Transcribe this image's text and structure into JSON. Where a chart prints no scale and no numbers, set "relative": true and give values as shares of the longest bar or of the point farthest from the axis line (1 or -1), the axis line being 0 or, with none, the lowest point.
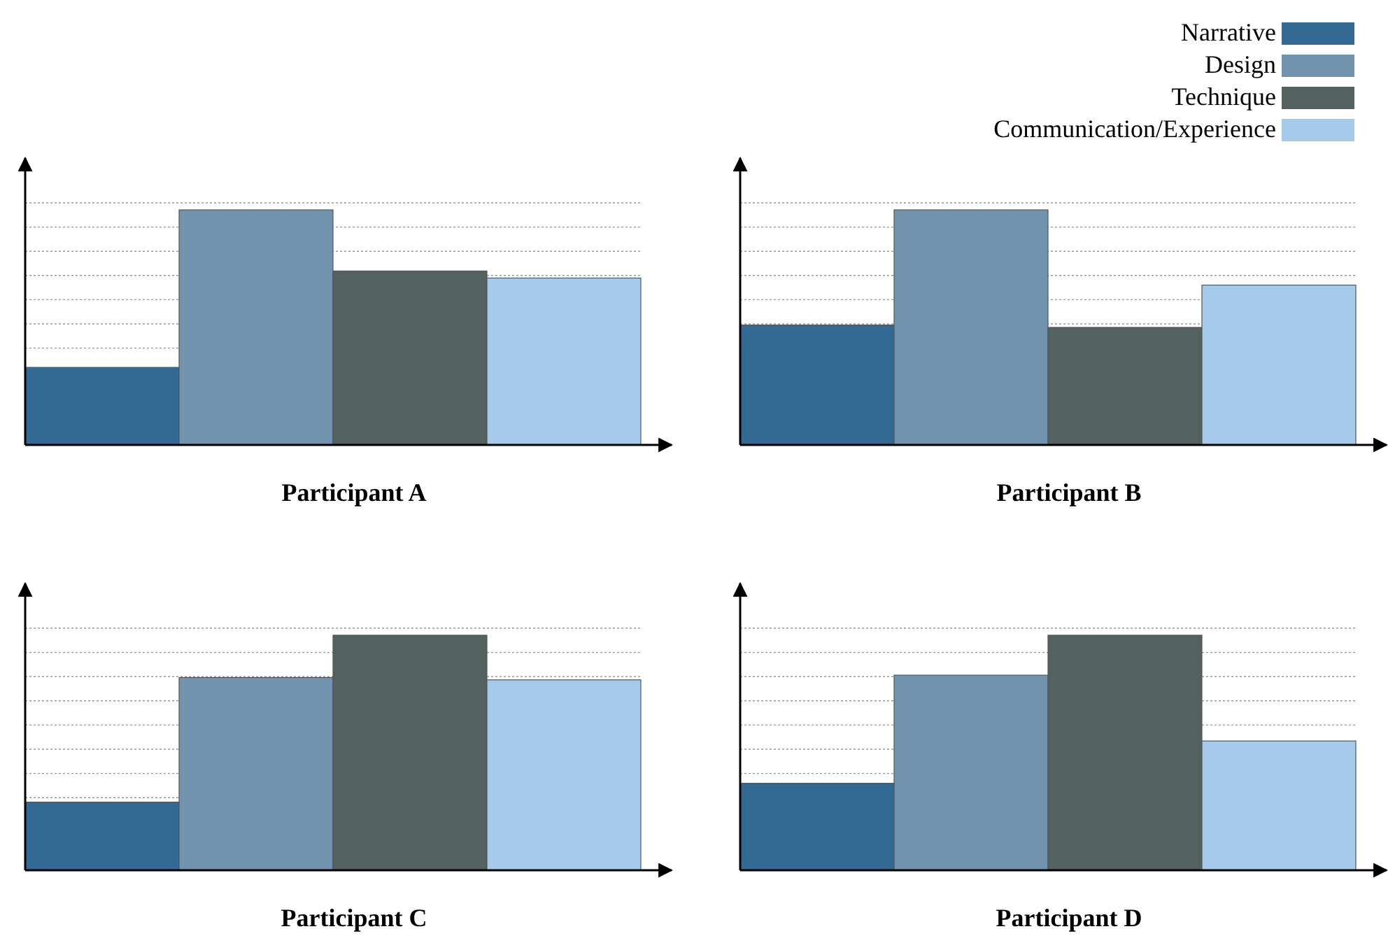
{
  "chart_data": [
    {
      "type": "bar",
      "title": "Participant A",
      "categories": [
        null
      ],
      "relative": true,
      "grid": true,
      "series": [
        {
          "color": "#336a94",
          "values": [
            0.33
          ]
        },
        {
          "color": "#7193ad",
          "values": [
            1
          ]
        },
        {
          "color": "#53625e",
          "values": [
            0.74
          ]
        },
        {
          "color": "#a6cbea",
          "values": [
            0.71
          ]
        }
      ]
    },
    {
      "type": "bar",
      "title": "Participant B",
      "categories": [
        null
      ],
      "relative": true,
      "grid": true,
      "legend": "top right",
      "series": [
        {
          "name": "Narrative",
          "color": "#336a94",
          "values": [
            0.51
          ]
        },
        {
          "name": "Design",
          "color": "#7193ad",
          "values": [
            1
          ]
        },
        {
          "name": "Technique",
          "color": "#53625e",
          "values": [
            0.5
          ]
        },
        {
          "name": "Communication/Experience",
          "color": "#a6cbea",
          "values": [
            0.68
          ]
        }
      ]
    },
    {
      "type": "bar",
      "title": "Participant C",
      "categories": [
        null
      ],
      "relative": true,
      "grid": true,
      "series": [
        {
          "color": "#336a94",
          "values": [
            0.29
          ]
        },
        {
          "color": "#7193ad",
          "values": [
            0.82
          ]
        },
        {
          "color": "#53625e",
          "values": [
            1
          ]
        },
        {
          "color": "#a6cbea",
          "values": [
            0.81
          ]
        }
      ]
    },
    {
      "type": "bar",
      "title": "Participant D",
      "categories": [
        null
      ],
      "relative": true,
      "grid": true,
      "series": [
        {
          "color": "#336a94",
          "values": [
            0.37
          ]
        },
        {
          "color": "#7193ad",
          "values": [
            0.83
          ]
        },
        {
          "color": "#53625e",
          "values": [
            1
          ]
        },
        {
          "color": "#a6cbea",
          "values": [
            0.55
          ]
        }
      ]
    }
  ]
}
